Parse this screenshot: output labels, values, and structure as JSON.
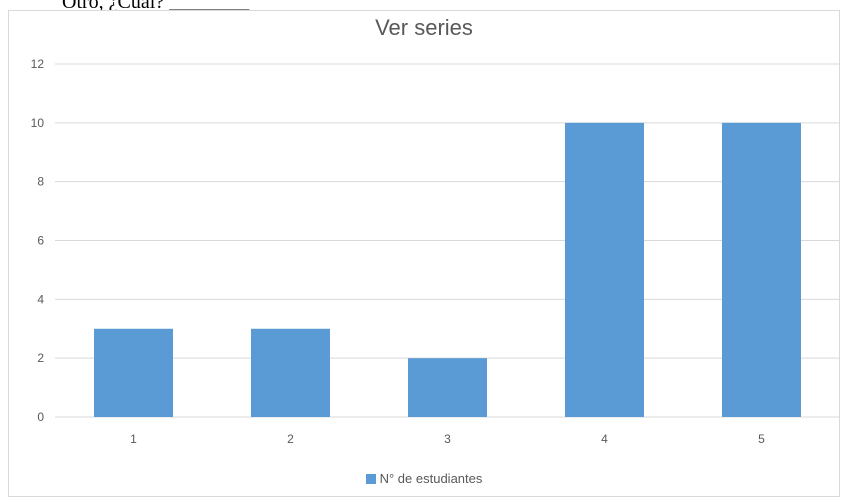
{
  "document": {
    "text_line": "Otro, ¿Cuál? ________"
  },
  "colors": {
    "bar": "#5b9bd5",
    "grid": "#d9d9d9",
    "text": "#595959"
  },
  "chart_data": {
    "type": "bar",
    "title": "Ver series",
    "categories": [
      "1",
      "2",
      "3",
      "4",
      "5"
    ],
    "series": [
      {
        "name": "N° de estudiantes",
        "values": [
          3,
          3,
          2,
          10,
          10
        ]
      }
    ],
    "ylim": [
      0,
      12
    ],
    "yticks": [
      0,
      2,
      4,
      6,
      8,
      10,
      12
    ],
    "grid": true,
    "legend_position": "bottom",
    "xlabel": "",
    "ylabel": ""
  }
}
